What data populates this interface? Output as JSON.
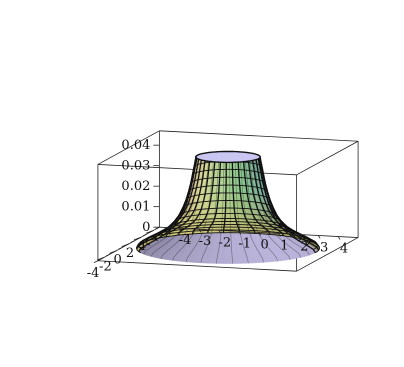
{
  "chart_data": {
    "type": "surface3d",
    "title": "",
    "xlabel": "",
    "ylabel": "",
    "zlabel": "",
    "z_ticks": [
      "0",
      "0.01",
      "0.02",
      "0.03",
      "0.04"
    ],
    "x_ticks": [
      "-4",
      "-2",
      "0",
      "2",
      "4"
    ],
    "y_ticks": [
      "4",
      "3",
      "2",
      "1",
      "0",
      "-1",
      "-2",
      "-3",
      "-4"
    ],
    "zlim": [
      0,
      0.047
    ],
    "xlim": [
      -5,
      5
    ],
    "ylim": [
      -5,
      5
    ],
    "surface": "surface of revolution, radius shrinking as z increases",
    "profile": [
      {
        "z": 0.0005,
        "r": 4.4
      },
      {
        "z": 0.002,
        "r": 4.3
      },
      {
        "z": 0.004,
        "r": 3.95
      },
      {
        "z": 0.006,
        "r": 3.55
      },
      {
        "z": 0.008,
        "r": 3.2
      },
      {
        "z": 0.01,
        "r": 2.9
      },
      {
        "z": 0.013,
        "r": 2.6
      },
      {
        "z": 0.016,
        "r": 2.38
      },
      {
        "z": 0.02,
        "r": 2.18
      },
      {
        "z": 0.024,
        "r": 2.02
      },
      {
        "z": 0.028,
        "r": 1.9
      },
      {
        "z": 0.032,
        "r": 1.8
      },
      {
        "z": 0.036,
        "r": 1.72
      },
      {
        "z": 0.04,
        "r": 1.64
      },
      {
        "z": 0.043,
        "r": 1.58
      },
      {
        "z": 0.045,
        "r": 1.55
      }
    ],
    "inner_cylinder": {
      "r": 1.5,
      "z_bottom": -0.002,
      "z_top": 0.0005
    },
    "meridians": 36,
    "colors": {
      "lines": "#111111",
      "box": "#222222"
    }
  }
}
